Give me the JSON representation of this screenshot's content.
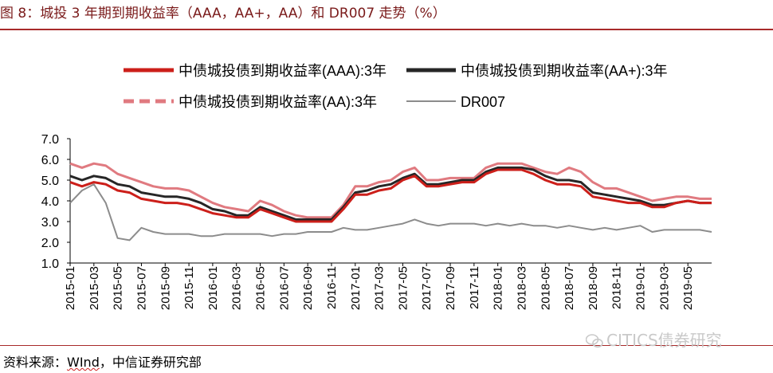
{
  "header": {
    "title": "图 8：城投 3 年期到期收益率（AAA，AA+，AA）和 DR007 走势（%）"
  },
  "footer": {
    "source_prefix": "资料来源：",
    "source_wind": "WInd",
    "source_suffix": "，中信证券研究部",
    "watermark": "CITICS债券研究"
  },
  "colors": {
    "aaa": "#cc1f1a",
    "aaplus": "#262626",
    "aa": "#e07a80",
    "dr007": "#8c8c8c",
    "rule": "#a82a2a"
  },
  "chart_data": {
    "type": "line",
    "title": "",
    "xlabel": "",
    "ylabel": "",
    "ylim": [
      1.0,
      7.0
    ],
    "yticks": [
      "7.0",
      "6.0",
      "5.0",
      "4.0",
      "3.0",
      "2.0",
      "1.0"
    ],
    "grid": false,
    "legend_position": "top",
    "xticks": [
      "2015-01",
      "2015-03",
      "2015-05",
      "2015-07",
      "2015-09",
      "2015-11",
      "2016-01",
      "2016-03",
      "2016-05",
      "2016-07",
      "2016-09",
      "2016-11",
      "2017-01",
      "2017-03",
      "2017-05",
      "2017-07",
      "2017-09",
      "2017-11",
      "2018-01",
      "2018-03",
      "2018-05",
      "2018-07",
      "2018-09",
      "2018-11",
      "2019-01",
      "2019-03",
      "2019-05"
    ],
    "x": [
      "2015-01",
      "2015-02",
      "2015-03",
      "2015-04",
      "2015-05",
      "2015-06",
      "2015-07",
      "2015-08",
      "2015-09",
      "2015-10",
      "2015-11",
      "2015-12",
      "2016-01",
      "2016-02",
      "2016-03",
      "2016-04",
      "2016-05",
      "2016-06",
      "2016-07",
      "2016-08",
      "2016-09",
      "2016-10",
      "2016-11",
      "2016-12",
      "2017-01",
      "2017-02",
      "2017-03",
      "2017-04",
      "2017-05",
      "2017-06",
      "2017-07",
      "2017-08",
      "2017-09",
      "2017-10",
      "2017-11",
      "2017-12",
      "2018-01",
      "2018-02",
      "2018-03",
      "2018-04",
      "2018-05",
      "2018-06",
      "2018-07",
      "2018-08",
      "2018-09",
      "2018-10",
      "2018-11",
      "2018-12",
      "2019-01",
      "2019-02",
      "2019-03",
      "2019-04",
      "2019-05",
      "2019-06",
      "2019-07"
    ],
    "series": [
      {
        "name": "中债城投债到期收益率(AAA):3年",
        "color": "#cc1f1a",
        "style": "solid",
        "values": [
          4.9,
          4.7,
          4.9,
          4.8,
          4.5,
          4.4,
          4.1,
          4.0,
          3.9,
          3.9,
          3.8,
          3.6,
          3.4,
          3.3,
          3.2,
          3.2,
          3.6,
          3.4,
          3.2,
          3.0,
          3.0,
          3.0,
          3.0,
          3.6,
          4.3,
          4.3,
          4.5,
          4.6,
          5.0,
          5.2,
          4.7,
          4.7,
          4.8,
          4.9,
          4.9,
          5.3,
          5.5,
          5.5,
          5.5,
          5.3,
          5.0,
          4.8,
          4.8,
          4.7,
          4.2,
          4.1,
          4.0,
          3.9,
          3.9,
          3.7,
          3.7,
          3.9,
          4.0,
          3.9,
          3.9
        ]
      },
      {
        "name": "中债城投债到期收益率(AA+):3年",
        "color": "#262626",
        "style": "solid",
        "values": [
          5.2,
          5.0,
          5.2,
          5.1,
          4.8,
          4.7,
          4.4,
          4.3,
          4.2,
          4.2,
          4.1,
          3.9,
          3.6,
          3.5,
          3.3,
          3.3,
          3.7,
          3.5,
          3.3,
          3.1,
          3.1,
          3.1,
          3.1,
          3.7,
          4.4,
          4.5,
          4.7,
          4.8,
          5.1,
          5.3,
          4.8,
          4.8,
          4.9,
          5.0,
          5.0,
          5.4,
          5.6,
          5.6,
          5.6,
          5.5,
          5.2,
          5.0,
          5.0,
          4.9,
          4.4,
          4.3,
          4.2,
          4.1,
          4.0,
          3.8,
          3.8,
          3.9,
          4.0,
          3.9,
          3.9
        ]
      },
      {
        "name": "中债城投债到期收益率(AA):3年",
        "color": "#e07a80",
        "style": "dashed",
        "values": [
          5.8,
          5.6,
          5.8,
          5.7,
          5.3,
          5.1,
          4.9,
          4.7,
          4.6,
          4.6,
          4.5,
          4.2,
          3.9,
          3.7,
          3.6,
          3.5,
          4.0,
          3.8,
          3.5,
          3.3,
          3.2,
          3.2,
          3.2,
          3.8,
          4.7,
          4.7,
          4.9,
          5.0,
          5.4,
          5.6,
          5.0,
          5.0,
          5.1,
          5.1,
          5.1,
          5.6,
          5.8,
          5.8,
          5.8,
          5.6,
          5.4,
          5.3,
          5.6,
          5.4,
          4.9,
          4.6,
          4.6,
          4.4,
          4.2,
          4.0,
          4.1,
          4.2,
          4.2,
          4.1,
          4.1
        ]
      },
      {
        "name": "DR007",
        "color": "#8c8c8c",
        "style": "solid",
        "values": [
          3.9,
          4.5,
          4.8,
          3.9,
          2.2,
          2.1,
          2.7,
          2.5,
          2.4,
          2.4,
          2.4,
          2.3,
          2.3,
          2.4,
          2.4,
          2.4,
          2.4,
          2.3,
          2.4,
          2.4,
          2.5,
          2.5,
          2.5,
          2.7,
          2.6,
          2.6,
          2.7,
          2.8,
          2.9,
          3.1,
          2.9,
          2.8,
          2.9,
          2.9,
          2.9,
          2.8,
          2.9,
          2.8,
          2.9,
          2.8,
          2.8,
          2.7,
          2.8,
          2.7,
          2.6,
          2.7,
          2.6,
          2.7,
          2.8,
          2.5,
          2.6,
          2.6,
          2.6,
          2.6,
          2.5
        ]
      }
    ]
  }
}
